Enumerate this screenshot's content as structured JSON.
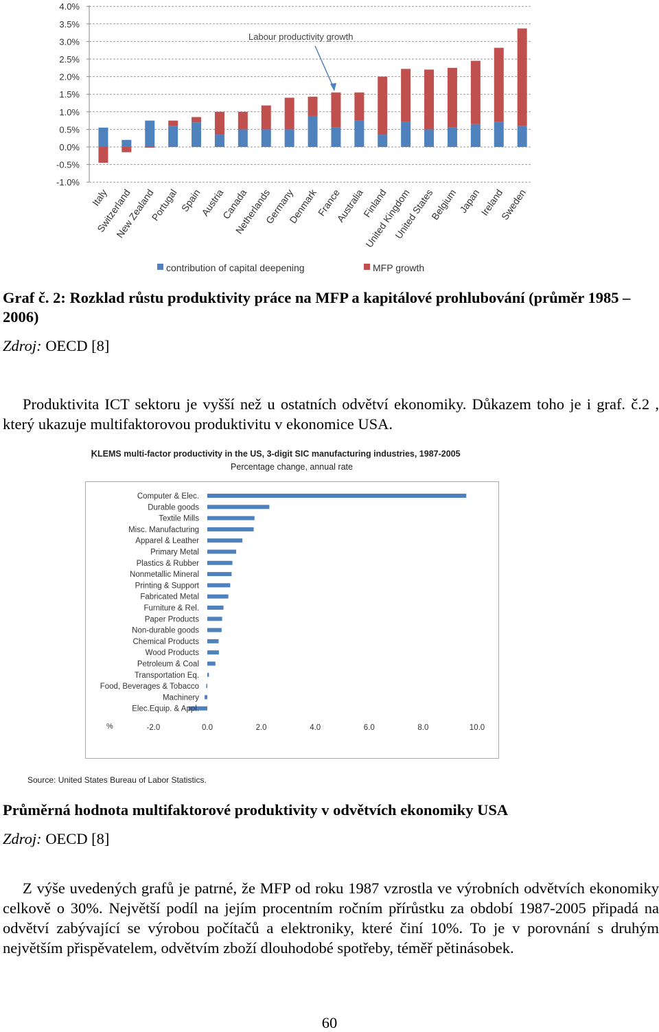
{
  "chart_data": [
    {
      "type": "bar",
      "stacked": true,
      "title": "Labour productivity growth",
      "annotation": "Labour productivity growth",
      "categories": [
        "Italy",
        "Switzerland",
        "New Zealand",
        "Portugal",
        "Spain",
        "Austria",
        "Canada",
        "Netherlands",
        "Germany",
        "Denmark",
        "France",
        "Australia",
        "Finland",
        "United Kingdom",
        "United States",
        "Belgium",
        "Japan",
        "Ireland",
        "Sweden"
      ],
      "series": [
        {
          "name": "contribution of capital deepening",
          "color": "#4f81bd",
          "values": [
            0.55,
            0.2,
            0.75,
            0.6,
            0.7,
            0.35,
            0.5,
            0.5,
            0.5,
            0.88,
            0.55,
            0.75,
            0.35,
            0.72,
            0.5,
            0.55,
            0.65,
            0.72,
            0.6
          ]
        },
        {
          "name": "MFP growth",
          "color": "#c0504d",
          "values": [
            -0.45,
            -0.15,
            -0.02,
            0.15,
            0.15,
            0.65,
            0.5,
            0.68,
            0.9,
            0.55,
            1.0,
            0.8,
            1.65,
            1.5,
            1.7,
            1.7,
            1.8,
            2.1,
            2.77
          ]
        }
      ],
      "ylim": [
        -1.0,
        4.0
      ],
      "yticks": [
        "4.0%",
        "3.5%",
        "3.0%",
        "2.5%",
        "2.0%",
        "1.5%",
        "1.0%",
        "0.5%",
        "0.0%",
        "-0.5%",
        "-1.0%"
      ],
      "xlabel": "",
      "ylabel": "",
      "legend_position": "bottom"
    },
    {
      "type": "bar",
      "orientation": "horizontal",
      "title": "KLEMS multi-factor productivity in the US,  3-digit SIC manufacturing industries, 1987-2005",
      "subtitle": "Percentage change, annual rate",
      "categories": [
        "Computer & Elec.",
        "Durable goods",
        "Textile Mills",
        "Misc. Manufacturing",
        "Apparel & Leather",
        "Primary Metal",
        "Plastics & Rubber",
        "Nonmetallic Mineral",
        "Printing & Support",
        "Fabricated Metal",
        "Furniture & Rel.",
        "Paper Products",
        "Non-durable goods",
        "Chemical Products",
        "Wood Products",
        "Petroleum & Coal",
        "Transportation Eq.",
        "Food, Beverages & Tobacco",
        "Machinery",
        "Elec.Equip. & Appl."
      ],
      "values": [
        9.6,
        2.3,
        1.75,
        1.72,
        1.3,
        1.07,
        0.93,
        0.9,
        0.85,
        0.78,
        0.6,
        0.55,
        0.53,
        0.42,
        0.43,
        0.3,
        0.06,
        -0.04,
        -0.1,
        -0.7
      ],
      "color": "#4f81bd",
      "xlim": [
        -2.0,
        10.0
      ],
      "xticks": [
        "-2.0",
        "0.0",
        "2.0",
        "4.0",
        "6.0",
        "8.0",
        "10.0"
      ],
      "xlabel": "%",
      "source": "Source: United States Bureau of Labor Statistics."
    }
  ],
  "caption1": {
    "main": "Graf č. 2: Rozklad růstu produktivity práce na MFP a kapitálové prohlubování (průměr 1985 – 2006)"
  },
  "source1": {
    "label": "Zdroj:",
    "text": " OECD [8]"
  },
  "para1": "Produktivita ICT sektoru je vyšší než u ostatních odvětví ekonomiky. Důkazem toho je i graf. č.2 , který ukazuje multifaktorovou produktivitu v ekonomice USA.",
  "caption2": {
    "main": "Průměrná hodnota multifaktorové produktivity v odvětvích ekonomiky USA"
  },
  "source2": {
    "label": "Zdroj:",
    "text": " OECD [8]"
  },
  "para2": "Z výše uvedených grafů je patrné, že MFP od roku 1987 vzrostla ve výrobních odvětvích ekonomiky celkově o 30%. Největší podíl na jejím procentním ročním přírůstku za období 1987-2005 připadá na odvětví zabývající se výrobou počítačů a elektroniky, které činí 10%. To je v porovnání s druhým největším přispěvatelem, odvětvím zboží dlouhodobé spotřeby, téměř pětinásobek.",
  "page_number": "60"
}
